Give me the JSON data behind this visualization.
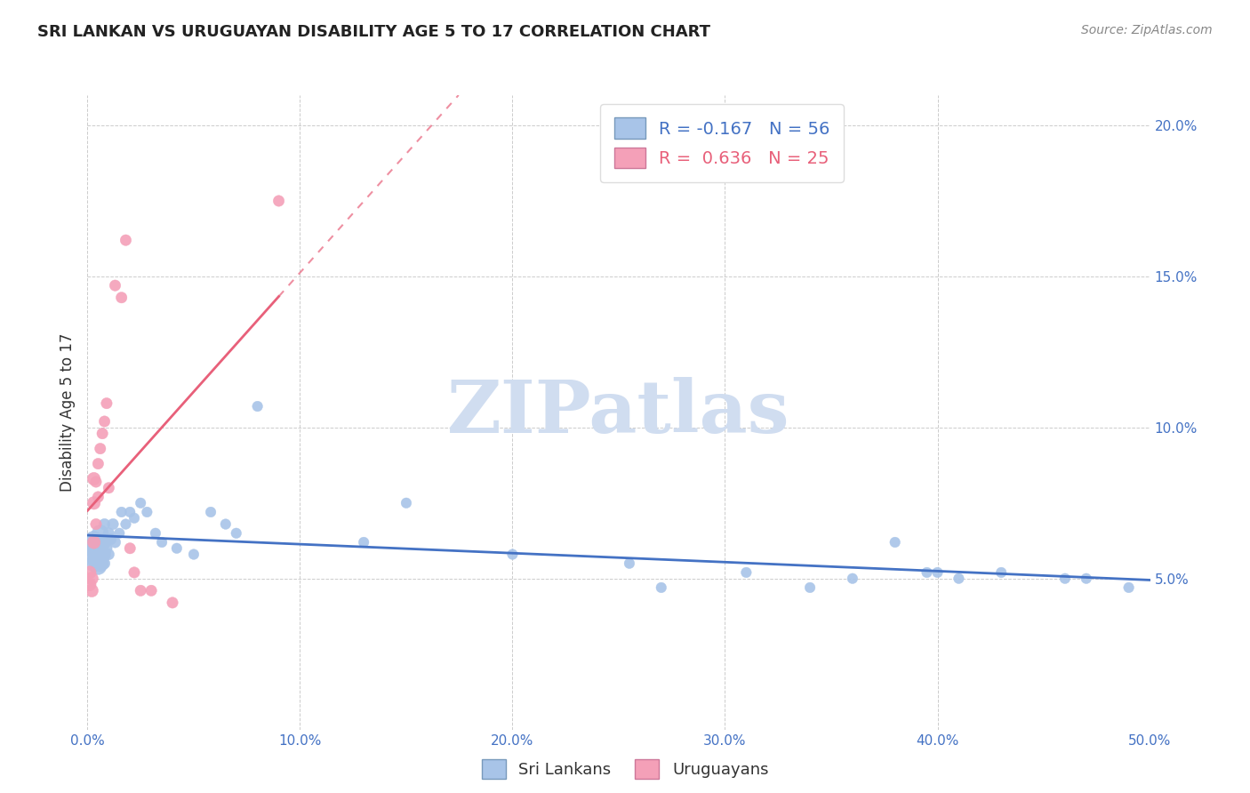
{
  "title": "SRI LANKAN VS URUGUAYAN DISABILITY AGE 5 TO 17 CORRELATION CHART",
  "source": "Source: ZipAtlas.com",
  "ylabel": "Disability Age 5 to 17",
  "xlim": [
    0.0,
    0.5
  ],
  "ylim": [
    0.0,
    0.21
  ],
  "xticks": [
    0.0,
    0.1,
    0.2,
    0.3,
    0.4,
    0.5
  ],
  "xticklabels": [
    "0.0%",
    "10.0%",
    "20.0%",
    "30.0%",
    "40.0%",
    "50.0%"
  ],
  "yticks": [
    0.05,
    0.1,
    0.15,
    0.2
  ],
  "yticklabels": [
    "5.0%",
    "10.0%",
    "15.0%",
    "20.0%"
  ],
  "sri_lankans_R": -0.167,
  "sri_lankans_N": 56,
  "uruguayans_R": 0.636,
  "uruguayans_N": 25,
  "sri_lankan_color": "#a8c4e8",
  "uruguayan_color": "#f4a0b8",
  "trend_blue": "#4472c4",
  "trend_pink": "#e8607a",
  "legend_box_color_blue": "#a8c4e8",
  "legend_box_color_pink": "#f4a0b8",
  "sri_lankans_x": [
    0.001,
    0.002,
    0.002,
    0.003,
    0.003,
    0.003,
    0.004,
    0.004,
    0.005,
    0.005,
    0.005,
    0.005,
    0.006,
    0.006,
    0.006,
    0.007,
    0.007,
    0.008,
    0.008,
    0.009,
    0.01,
    0.01,
    0.011,
    0.012,
    0.013,
    0.015,
    0.016,
    0.018,
    0.02,
    0.022,
    0.025,
    0.028,
    0.032,
    0.035,
    0.042,
    0.05,
    0.058,
    0.065,
    0.07,
    0.08,
    0.13,
    0.15,
    0.2,
    0.255,
    0.27,
    0.31,
    0.34,
    0.36,
    0.38,
    0.395,
    0.4,
    0.41,
    0.43,
    0.46,
    0.47,
    0.49
  ],
  "sri_lankans_y": [
    0.06,
    0.06,
    0.058,
    0.055,
    0.06,
    0.063,
    0.056,
    0.062,
    0.058,
    0.06,
    0.054,
    0.062,
    0.055,
    0.06,
    0.065,
    0.058,
    0.062,
    0.055,
    0.068,
    0.06,
    0.065,
    0.058,
    0.063,
    0.068,
    0.062,
    0.065,
    0.072,
    0.068,
    0.072,
    0.07,
    0.075,
    0.072,
    0.065,
    0.062,
    0.06,
    0.058,
    0.072,
    0.068,
    0.065,
    0.107,
    0.062,
    0.075,
    0.058,
    0.055,
    0.047,
    0.052,
    0.047,
    0.05,
    0.062,
    0.052,
    0.052,
    0.05,
    0.052,
    0.05,
    0.05,
    0.047
  ],
  "uruguayans_x": [
    0.001,
    0.001,
    0.002,
    0.002,
    0.003,
    0.003,
    0.003,
    0.004,
    0.004,
    0.005,
    0.005,
    0.006,
    0.007,
    0.008,
    0.009,
    0.01,
    0.013,
    0.016,
    0.018,
    0.02,
    0.022,
    0.025,
    0.03,
    0.04,
    0.09
  ],
  "uruguayans_y": [
    0.048,
    0.052,
    0.046,
    0.05,
    0.062,
    0.075,
    0.083,
    0.068,
    0.082,
    0.077,
    0.088,
    0.093,
    0.098,
    0.102,
    0.108,
    0.08,
    0.147,
    0.143,
    0.162,
    0.06,
    0.052,
    0.046,
    0.046,
    0.042,
    0.175
  ],
  "background_color": "#ffffff",
  "grid_color": "#cccccc",
  "watermark": "ZIPatlas",
  "watermark_color": "#d0ddf0"
}
